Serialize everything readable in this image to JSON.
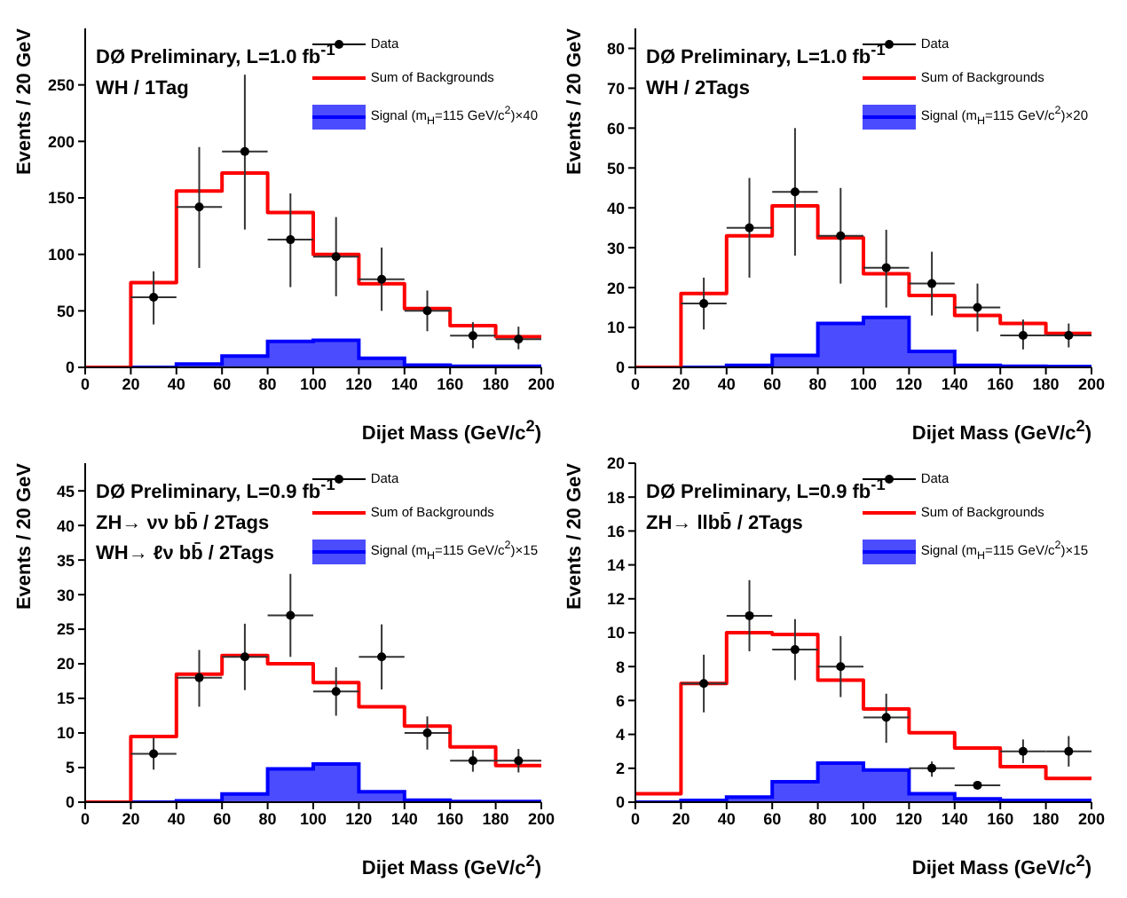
{
  "chart_data": [
    {
      "type": "histogram",
      "title": "DØ Preliminary, L=1.0 fb$^{-1}$",
      "subtitle": "WH / 1Tag",
      "xlabel": "Dijet Mass (GeV/c$^{2}$)",
      "ylabel": "Events / 20 GeV",
      "bins": [
        0,
        20,
        40,
        60,
        80,
        100,
        120,
        140,
        160,
        180,
        200
      ],
      "xlim": [
        0,
        200
      ],
      "xticks": [
        0,
        20,
        40,
        60,
        80,
        100,
        120,
        140,
        160,
        180,
        200
      ],
      "ylim": [
        0,
        300
      ],
      "yticks": [
        0,
        50,
        100,
        150,
        200,
        250
      ],
      "legend": "top right",
      "series": [
        {
          "name": "Data",
          "type": "scatter",
          "marker": "circle",
          "color": "#000000",
          "x": [
            30,
            50,
            70,
            90,
            110,
            130,
            150,
            170,
            190
          ],
          "values": [
            62,
            142,
            191,
            113,
            98,
            78,
            50,
            28,
            25
          ],
          "errors": [
            [
              38,
              85
            ],
            [
              88,
              195
            ],
            [
              122,
              259
            ],
            [
              71,
              154
            ],
            [
              63,
              133
            ],
            [
              50,
              106
            ],
            [
              32,
              68
            ],
            [
              17,
              40
            ],
            [
              16,
              36
            ]
          ],
          "xerrors": [
            10,
            10,
            10,
            10,
            10,
            10,
            10,
            10,
            10
          ]
        },
        {
          "name": "Sum of Backgrounds",
          "type": "step",
          "color": "#ff0000",
          "x": [
            0,
            20,
            40,
            60,
            80,
            100,
            120,
            140,
            160,
            180,
            200
          ],
          "values": [
            0,
            75,
            156,
            172,
            137,
            100,
            74,
            52,
            37,
            27,
            27
          ]
        },
        {
          "name": "Signal (m$_{H}$=115 GeV/c$^{2}$)×40",
          "color": "#0000ff",
          "values": [
            0,
            0,
            3,
            10,
            23,
            24,
            8,
            2,
            1,
            1
          ]
        }
      ]
    },
    {
      "type": "histogram",
      "title": "DØ Preliminary, L=1.0 fb$^{-1}$",
      "subtitle": "WH / 2Tags",
      "xlabel": "Dijet Mass (GeV/c$^{2}$)",
      "ylabel": "Events / 20 GeV",
      "bins": [
        0,
        20,
        40,
        60,
        80,
        100,
        120,
        140,
        160,
        180,
        200
      ],
      "xlim": [
        0,
        200
      ],
      "xticks": [
        0,
        20,
        40,
        60,
        80,
        100,
        120,
        140,
        160,
        180,
        200
      ],
      "ylim": [
        0,
        85
      ],
      "yticks": [
        0,
        10,
        20,
        30,
        40,
        50,
        60,
        70,
        80
      ],
      "legend": "top right",
      "series": [
        {
          "name": "Data",
          "type": "scatter",
          "marker": "circle",
          "color": "#000000",
          "x": [
            30,
            50,
            70,
            90,
            110,
            130,
            150,
            170,
            190
          ],
          "values": [
            16,
            35,
            44,
            33,
            25,
            21,
            15,
            8,
            8
          ],
          "errors": [
            [
              9.5,
              22.5
            ],
            [
              22.5,
              47.5
            ],
            [
              28,
              60
            ],
            [
              21,
              45
            ],
            [
              15,
              34.5
            ],
            [
              13,
              29
            ],
            [
              9,
              21
            ],
            [
              4.5,
              12
            ],
            [
              5,
              11
            ]
          ],
          "xerrors": [
            10,
            10,
            10,
            10,
            10,
            10,
            10,
            10,
            10
          ]
        },
        {
          "name": "Sum of Backgrounds",
          "type": "step",
          "color": "#ff0000",
          "x": [
            0,
            20,
            40,
            60,
            80,
            100,
            120,
            140,
            160,
            180,
            200
          ],
          "values": [
            0,
            18.5,
            33,
            40.5,
            32.5,
            23.5,
            18,
            13,
            11,
            8.5,
            8.5
          ]
        },
        {
          "name": "Signal (m$_{H}$=115 GeV/c$^{2}$)×20",
          "color": "#0000ff",
          "values": [
            0,
            0,
            0.5,
            3,
            11,
            12.5,
            4,
            0.5,
            0.3,
            0.2
          ]
        }
      ]
    },
    {
      "type": "histogram",
      "title": "DØ Preliminary, L=0.9 fb$^{-1}$",
      "subtitle": "ZH→ νν bb̄ / 2Tags",
      "annotations": [
        "WH→ ℓν bb̄ / 2Tags"
      ],
      "xlabel": "Dijet Mass (GeV/c$^{2}$)",
      "ylabel": "Events / 20 GeV",
      "bins": [
        0,
        20,
        40,
        60,
        80,
        100,
        120,
        140,
        160,
        180,
        200
      ],
      "xlim": [
        0,
        200
      ],
      "xticks": [
        0,
        20,
        40,
        60,
        80,
        100,
        120,
        140,
        160,
        180,
        200
      ],
      "ylim": [
        0,
        49
      ],
      "yticks": [
        0,
        5,
        10,
        15,
        20,
        25,
        30,
        35,
        40,
        45
      ],
      "legend": "top right",
      "series": [
        {
          "name": "Data",
          "type": "scatter",
          "marker": "circle",
          "color": "#000000",
          "x": [
            30,
            50,
            70,
            90,
            110,
            130,
            150,
            170,
            190
          ],
          "values": [
            7,
            18,
            21,
            27,
            16,
            21,
            10,
            6,
            6
          ],
          "errors": [
            [
              4.7,
              9.3
            ],
            [
              13.8,
              22
            ],
            [
              16.2,
              25.8
            ],
            [
              21,
              33
            ],
            [
              12.5,
              19.5
            ],
            [
              16.3,
              25.7
            ],
            [
              7.6,
              12.4
            ],
            [
              4.4,
              7.5
            ],
            [
              4.3,
              7.7
            ]
          ],
          "xerrors": [
            10,
            10,
            10,
            10,
            10,
            10,
            10,
            10,
            10
          ]
        },
        {
          "name": "Sum of Backgrounds",
          "type": "step",
          "color": "#ff0000",
          "x": [
            0,
            20,
            40,
            60,
            80,
            100,
            120,
            140,
            160,
            180,
            200
          ],
          "values": [
            0,
            9.5,
            18.5,
            21.2,
            20,
            17.3,
            13.8,
            11,
            8,
            5.3,
            5.3
          ]
        },
        {
          "name": "Signal (m$_{H}$=115 GeV/c$^{2}$)×15",
          "color": "#0000ff",
          "values": [
            0,
            0,
            0.2,
            1.2,
            4.8,
            5.5,
            1.5,
            0.3,
            0.1,
            0.1
          ]
        }
      ]
    },
    {
      "type": "histogram",
      "title": "DØ Preliminary, L=0.9 fb$^{-1}$",
      "subtitle": "ZH→ llbb̄ / 2Tags",
      "xlabel": "Dijet Mass (GeV/c$^{2}$)",
      "ylabel": "Events / 20 GeV",
      "bins": [
        0,
        20,
        40,
        60,
        80,
        100,
        120,
        140,
        160,
        180,
        200
      ],
      "xlim": [
        0,
        200
      ],
      "xticks": [
        0,
        20,
        40,
        60,
        80,
        100,
        120,
        140,
        160,
        180,
        200
      ],
      "ylim": [
        0,
        20
      ],
      "yticks": [
        0,
        2,
        4,
        6,
        8,
        10,
        12,
        14,
        16,
        18,
        20
      ],
      "legend": "top right",
      "series": [
        {
          "name": "Data",
          "type": "scatter",
          "marker": "circle",
          "color": "#000000",
          "x": [
            30,
            50,
            70,
            90,
            110,
            130,
            150,
            170,
            190
          ],
          "values": [
            7,
            11,
            9,
            8,
            5,
            2,
            1,
            3,
            3
          ],
          "errors": [
            [
              5.3,
              8.7
            ],
            [
              8.9,
              13.1
            ],
            [
              7.2,
              10.8
            ],
            [
              6.2,
              9.8
            ],
            [
              3.5,
              6.4
            ],
            [
              1.5,
              2.4
            ],
            [
              0.85,
              1.15
            ],
            [
              2.3,
              3.7
            ],
            [
              2.1,
              3.9
            ]
          ],
          "xerrors": [
            10,
            10,
            10,
            10,
            10,
            10,
            10,
            10,
            10
          ]
        },
        {
          "name": "Sum of Backgrounds",
          "type": "step",
          "color": "#ff0000",
          "x": [
            0,
            20,
            40,
            60,
            80,
            100,
            120,
            140,
            160,
            180,
            200
          ],
          "values": [
            0.5,
            7,
            10,
            9.9,
            7.2,
            5.5,
            4.1,
            3.2,
            2.1,
            1.4,
            1.4
          ]
        },
        {
          "name": "Signal (m$_{H}$=115 GeV/c$^{2}$)×15",
          "color": "#0000ff",
          "values": [
            0,
            0.1,
            0.3,
            1.2,
            2.3,
            1.9,
            0.5,
            0.2,
            0.1,
            0.1
          ]
        }
      ]
    }
  ]
}
